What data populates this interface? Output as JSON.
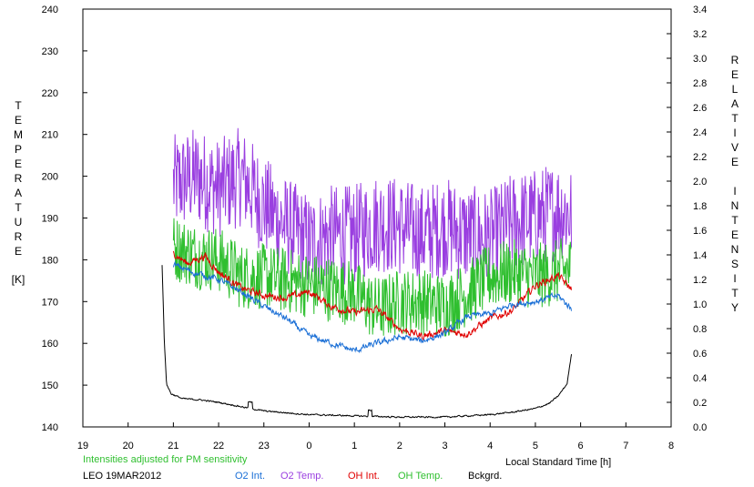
{
  "chart_data": {
    "type": "line",
    "xaxis": {
      "label": "Local Standard Time [h]",
      "ticks": [
        "19",
        "20",
        "21",
        "22",
        "23",
        "0",
        "1",
        "2",
        "3",
        "4",
        "5",
        "6",
        "7",
        "8"
      ],
      "range_hours": [
        19,
        32
      ]
    },
    "yaxis_left": {
      "label_letters": [
        "T",
        "E",
        "M",
        "P",
        "E",
        "R",
        "A",
        "T",
        "U",
        "R",
        "E"
      ],
      "unit": "[K]",
      "range": [
        140,
        240
      ],
      "ticks": [
        "140",
        "150",
        "160",
        "170",
        "180",
        "190",
        "200",
        "210",
        "220",
        "230",
        "240"
      ]
    },
    "yaxis_right": {
      "word1": [
        "R",
        "E",
        "L",
        "A",
        "T",
        "I",
        "V",
        "E"
      ],
      "word2": [
        "I",
        "N",
        "T",
        "E",
        "N",
        "S",
        "I",
        "T",
        "Y"
      ],
      "range": [
        0,
        3.4
      ],
      "ticks": [
        "0.0",
        "0.2",
        "0.4",
        "0.6",
        "0.8",
        "1.0",
        "1.2",
        "1.4",
        "1.6",
        "1.8",
        "2.0",
        "2.2",
        "2.4",
        "2.6",
        "2.8",
        "3.0",
        "3.2",
        "3.4"
      ]
    },
    "note": "Intensities adjusted for PM sensitivity",
    "station": "LEO 19MAR2012",
    "colors": {
      "o2_int": "#1a6fd6",
      "o2_temp": "#9a3fe0",
      "oh_int": "#e00000",
      "oh_temp": "#2fbf2f",
      "bckgrd": "#000000",
      "note": "#2fbf2f"
    },
    "series": [
      {
        "name": "O2 Temp.",
        "axis": "left",
        "noise": 12,
        "points": [
          [
            21.0,
            198
          ],
          [
            21.5,
            200
          ],
          [
            22.0,
            197
          ],
          [
            22.5,
            200
          ],
          [
            23.0,
            193
          ],
          [
            23.5,
            188
          ],
          [
            24.0,
            184
          ],
          [
            24.5,
            186
          ],
          [
            25.0,
            186
          ],
          [
            25.5,
            189
          ],
          [
            26.0,
            188
          ],
          [
            26.5,
            186
          ],
          [
            27.0,
            188
          ],
          [
            27.5,
            186
          ],
          [
            28.0,
            185
          ],
          [
            28.5,
            189
          ],
          [
            29.0,
            190
          ],
          [
            29.5,
            192
          ],
          [
            29.8,
            191
          ]
        ]
      },
      {
        "name": "OH Temp.",
        "axis": "left",
        "noise": 8,
        "points": [
          [
            21.0,
            183
          ],
          [
            21.5,
            181
          ],
          [
            22.0,
            180
          ],
          [
            22.5,
            176
          ],
          [
            23.0,
            176
          ],
          [
            23.5,
            175
          ],
          [
            24.0,
            174
          ],
          [
            24.5,
            173
          ],
          [
            25.0,
            172
          ],
          [
            25.5,
            168
          ],
          [
            26.0,
            170
          ],
          [
            26.5,
            170
          ],
          [
            27.0,
            169
          ],
          [
            27.5,
            172
          ],
          [
            28.0,
            176
          ],
          [
            28.5,
            177
          ],
          [
            29.0,
            176
          ],
          [
            29.5,
            177
          ],
          [
            29.8,
            178
          ]
        ]
      },
      {
        "name": "OH Int.",
        "axis": "right",
        "noise": 0.04,
        "points": [
          [
            21.0,
            1.42
          ],
          [
            21.3,
            1.33
          ],
          [
            21.7,
            1.39
          ],
          [
            22.0,
            1.26
          ],
          [
            22.5,
            1.13
          ],
          [
            23.0,
            1.07
          ],
          [
            23.5,
            1.05
          ],
          [
            24.0,
            1.1
          ],
          [
            24.5,
            0.98
          ],
          [
            25.0,
            0.93
          ],
          [
            25.5,
            0.96
          ],
          [
            26.0,
            0.8
          ],
          [
            26.5,
            0.74
          ],
          [
            27.0,
            0.78
          ],
          [
            27.5,
            0.76
          ],
          [
            28.0,
            0.88
          ],
          [
            28.5,
            0.95
          ],
          [
            29.0,
            1.15
          ],
          [
            29.5,
            1.23
          ],
          [
            29.8,
            1.12
          ]
        ]
      },
      {
        "name": "O2 Int.",
        "axis": "right",
        "noise": 0.035,
        "points": [
          [
            21.0,
            1.32
          ],
          [
            21.5,
            1.25
          ],
          [
            22.0,
            1.2
          ],
          [
            22.5,
            1.1
          ],
          [
            23.0,
            0.98
          ],
          [
            23.5,
            0.88
          ],
          [
            24.0,
            0.74
          ],
          [
            24.5,
            0.68
          ],
          [
            25.0,
            0.62
          ],
          [
            25.5,
            0.68
          ],
          [
            26.0,
            0.73
          ],
          [
            26.5,
            0.7
          ],
          [
            27.0,
            0.76
          ],
          [
            27.5,
            0.9
          ],
          [
            28.0,
            0.92
          ],
          [
            28.5,
            1.0
          ],
          [
            29.0,
            1.02
          ],
          [
            29.5,
            1.07
          ],
          [
            29.8,
            0.96
          ]
        ]
      },
      {
        "name": "Bckgrd.",
        "axis": "right",
        "noise": 0.008,
        "points": [
          [
            20.75,
            1.32
          ],
          [
            20.8,
            0.7
          ],
          [
            20.85,
            0.35
          ],
          [
            20.95,
            0.27
          ],
          [
            21.2,
            0.23
          ],
          [
            21.6,
            0.22
          ],
          [
            22.0,
            0.2
          ],
          [
            23.0,
            0.13
          ],
          [
            24.0,
            0.1
          ],
          [
            25.0,
            0.09
          ],
          [
            26.0,
            0.08
          ],
          [
            27.0,
            0.08
          ],
          [
            28.0,
            0.1
          ],
          [
            28.5,
            0.12
          ],
          [
            29.0,
            0.15
          ],
          [
            29.3,
            0.19
          ],
          [
            29.5,
            0.25
          ],
          [
            29.7,
            0.35
          ],
          [
            29.8,
            0.6
          ]
        ]
      }
    ],
    "legend": [
      "O2 Int.",
      "O2 Temp.",
      "OH Int.",
      "OH Temp.",
      "Bckgrd."
    ]
  }
}
